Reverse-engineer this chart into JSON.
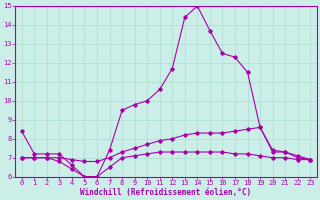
{
  "xlabel": "Windchill (Refroidissement éolien,°C)",
  "background_color": "#cceee8",
  "grid_color": "#aaddcc",
  "line_color": "#aa00aa",
  "xlim": [
    -0.5,
    23.5
  ],
  "ylim": [
    6,
    15
  ],
  "yticks": [
    6,
    7,
    8,
    9,
    10,
    11,
    12,
    13,
    14,
    15
  ],
  "xticks": [
    0,
    1,
    2,
    3,
    4,
    5,
    6,
    7,
    8,
    9,
    10,
    11,
    12,
    13,
    14,
    15,
    16,
    17,
    18,
    19,
    20,
    21,
    22,
    23
  ],
  "line1_x": [
    0,
    1,
    2,
    3,
    4,
    5,
    6,
    7,
    8,
    9,
    10,
    11,
    12,
    13,
    14,
    15,
    16,
    17,
    18,
    19,
    20,
    21,
    22,
    23
  ],
  "line1_y": [
    8.4,
    7.2,
    7.2,
    7.2,
    6.6,
    6.0,
    6.0,
    7.4,
    9.5,
    9.8,
    10.0,
    10.6,
    11.7,
    14.4,
    15.0,
    13.7,
    12.5,
    12.3,
    11.5,
    8.6,
    7.3,
    7.3,
    7.0,
    6.9
  ],
  "line2_x": [
    0,
    1,
    2,
    3,
    4,
    5,
    6,
    7,
    8,
    9,
    10,
    11,
    12,
    13,
    14,
    15,
    16,
    17,
    18,
    19,
    20,
    21,
    22,
    23
  ],
  "line2_y": [
    7.0,
    7.0,
    7.0,
    7.0,
    6.9,
    6.8,
    6.8,
    7.0,
    7.3,
    7.5,
    7.7,
    7.9,
    8.0,
    8.2,
    8.3,
    8.3,
    8.3,
    8.4,
    8.5,
    8.6,
    7.4,
    7.3,
    7.1,
    6.9
  ],
  "line3_x": [
    0,
    1,
    2,
    3,
    4,
    5,
    6,
    7,
    8,
    9,
    10,
    11,
    12,
    13,
    14,
    15,
    16,
    17,
    18,
    19,
    20,
    21,
    22,
    23
  ],
  "line3_y": [
    7.0,
    7.0,
    7.0,
    6.8,
    6.4,
    6.0,
    6.0,
    6.5,
    7.0,
    7.1,
    7.2,
    7.3,
    7.3,
    7.3,
    7.3,
    7.3,
    7.3,
    7.2,
    7.2,
    7.1,
    7.0,
    7.0,
    6.9,
    6.9
  ]
}
